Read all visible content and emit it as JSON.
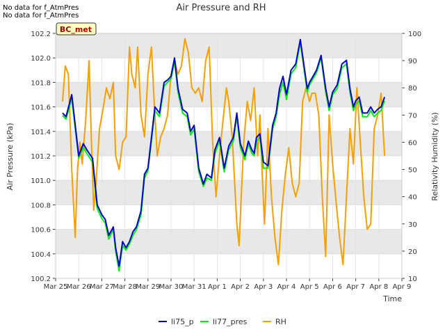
{
  "notes": [
    "No data for f_AtmPres",
    "No data for f_AtmPres"
  ],
  "chart_data": {
    "type": "line",
    "title": "Air Pressure and RH",
    "xlabel": "Time",
    "ylabel": "Air Pressure (kPa)",
    "y2label": "Relativity Humidity (%)",
    "annotation": "BC_met",
    "x_ticks": [
      "Mar 25",
      "Mar 26",
      "Mar 27",
      "Mar 28",
      "Mar 29",
      "Mar 30",
      "Mar 31",
      "Apr 1",
      "Apr 2",
      "Apr 3",
      "Apr 4",
      "Apr 5",
      "Apr 6",
      "Apr 7",
      "Apr 8",
      "Apr 9"
    ],
    "xlim_days": [
      0,
      15
    ],
    "ylim": [
      100.2,
      102.2
    ],
    "y_ticks": [
      "100.2",
      "100.4",
      "100.6",
      "100.8",
      "101.0",
      "101.2",
      "101.4",
      "101.6",
      "101.8",
      "102.0",
      "102.2"
    ],
    "y2lim": [
      10,
      100
    ],
    "y2_ticks": [
      "10",
      "20",
      "30",
      "40",
      "50",
      "60",
      "70",
      "80",
      "90",
      "100"
    ],
    "grid": true,
    "legend_placement": "bottom-center",
    "colors": {
      "li75_p": "#0000cc",
      "li77_pres": "#00ee00",
      "RH": "#f5a000",
      "band": "#e8e8e8",
      "label_bg": "#ffffc0",
      "label_text": "#aa0000"
    },
    "series": [
      {
        "name": "li75_p",
        "axis": "left",
        "x": [
          0.3,
          0.45,
          0.7,
          1.0,
          1.2,
          1.35,
          1.6,
          1.8,
          2.0,
          2.15,
          2.3,
          2.5,
          2.6,
          2.75,
          2.9,
          3.05,
          3.2,
          3.35,
          3.5,
          3.7,
          3.85,
          4.0,
          4.15,
          4.3,
          4.5,
          4.7,
          4.85,
          5.0,
          5.15,
          5.3,
          5.5,
          5.7,
          5.85,
          6.0,
          6.2,
          6.4,
          6.55,
          6.75,
          6.9,
          7.1,
          7.3,
          7.5,
          7.7,
          7.85,
          8.0,
          8.2,
          8.35,
          8.5,
          8.6,
          8.7,
          8.85,
          9.0,
          9.2,
          9.4,
          9.55,
          9.7,
          9.85,
          10.0,
          10.2,
          10.4,
          10.6,
          10.75,
          10.9,
          11.0,
          11.15,
          11.3,
          11.5,
          11.7,
          11.85,
          12.0,
          12.2,
          12.4,
          12.6,
          12.75,
          12.9,
          13.0,
          13.15,
          13.3,
          13.5,
          13.65,
          13.8,
          13.95,
          14.1,
          14.25
        ],
        "values": [
          101.55,
          101.52,
          101.7,
          101.2,
          101.3,
          101.25,
          101.18,
          100.8,
          100.72,
          100.68,
          100.55,
          100.62,
          100.45,
          100.3,
          100.5,
          100.45,
          100.5,
          100.58,
          100.62,
          100.75,
          101.05,
          101.1,
          101.35,
          101.6,
          101.55,
          101.8,
          101.82,
          101.85,
          102.0,
          101.75,
          101.58,
          101.55,
          101.4,
          101.45,
          101.1,
          100.97,
          101.05,
          101.02,
          101.25,
          101.35,
          101.1,
          101.28,
          101.35,
          101.55,
          101.3,
          101.2,
          101.32,
          101.25,
          101.22,
          101.35,
          101.38,
          101.15,
          101.12,
          101.45,
          101.55,
          101.75,
          101.85,
          101.7,
          101.9,
          101.95,
          102.15,
          101.95,
          101.75,
          101.8,
          101.85,
          101.9,
          102.02,
          101.75,
          101.6,
          101.72,
          101.78,
          101.95,
          101.98,
          101.75,
          101.6,
          101.65,
          101.68,
          101.55,
          101.55,
          101.6,
          101.55,
          101.58,
          101.6,
          101.68
        ]
      },
      {
        "name": "li77_pres",
        "axis": "left",
        "x": [
          0.3,
          0.45,
          0.7,
          1.0,
          1.2,
          1.35,
          1.6,
          1.8,
          2.0,
          2.15,
          2.3,
          2.5,
          2.6,
          2.75,
          2.9,
          3.05,
          3.2,
          3.35,
          3.5,
          3.7,
          3.85,
          4.0,
          4.15,
          4.3,
          4.5,
          4.7,
          4.85,
          5.0,
          5.15,
          5.3,
          5.5,
          5.7,
          5.85,
          6.0,
          6.2,
          6.4,
          6.55,
          6.75,
          6.9,
          7.1,
          7.3,
          7.5,
          7.7,
          7.85,
          8.0,
          8.2,
          8.35,
          8.5,
          8.6,
          8.7,
          8.85,
          9.0,
          9.2,
          9.4,
          9.55,
          9.7,
          9.85,
          10.0,
          10.2,
          10.4,
          10.6,
          10.75,
          10.9,
          11.0,
          11.15,
          11.3,
          11.5,
          11.7,
          11.85,
          12.0,
          12.2,
          12.4,
          12.6,
          12.75,
          12.9,
          13.0,
          13.15,
          13.3,
          13.5,
          13.65,
          13.8,
          13.95,
          14.1,
          14.25
        ],
        "values": [
          101.53,
          101.5,
          101.67,
          101.18,
          101.27,
          101.22,
          101.15,
          100.77,
          100.69,
          100.65,
          100.52,
          100.6,
          100.42,
          100.26,
          100.47,
          100.43,
          100.48,
          100.55,
          100.6,
          100.72,
          101.02,
          101.08,
          101.32,
          101.57,
          101.52,
          101.77,
          101.8,
          101.83,
          101.97,
          101.72,
          101.55,
          101.52,
          101.37,
          101.42,
          101.07,
          100.95,
          101.02,
          101.0,
          101.22,
          101.32,
          101.07,
          101.25,
          101.32,
          101.52,
          101.27,
          101.17,
          101.3,
          101.22,
          101.2,
          101.32,
          101.35,
          101.1,
          101.1,
          101.42,
          101.52,
          101.7,
          101.8,
          101.66,
          101.87,
          101.92,
          102.13,
          101.92,
          101.72,
          101.78,
          101.83,
          101.88,
          102.0,
          101.72,
          101.57,
          101.7,
          101.75,
          101.92,
          101.95,
          101.72,
          101.57,
          101.62,
          101.65,
          101.52,
          101.52,
          101.57,
          101.52,
          101.55,
          101.57,
          101.65
        ]
      },
      {
        "name": "RH",
        "axis": "right",
        "x": [
          0.3,
          0.42,
          0.55,
          0.7,
          0.85,
          0.95,
          1.05,
          1.15,
          1.3,
          1.45,
          1.55,
          1.65,
          1.75,
          1.9,
          2.05,
          2.2,
          2.35,
          2.5,
          2.6,
          2.75,
          2.9,
          3.05,
          3.2,
          3.3,
          3.45,
          3.55,
          3.7,
          3.85,
          4.0,
          4.15,
          4.25,
          4.4,
          4.55,
          4.7,
          4.85,
          5.0,
          5.15,
          5.3,
          5.45,
          5.6,
          5.75,
          5.9,
          6.05,
          6.2,
          6.35,
          6.5,
          6.65,
          6.8,
          6.95,
          7.1,
          7.25,
          7.4,
          7.5,
          7.65,
          7.85,
          7.95,
          8.05,
          8.15,
          8.3,
          8.45,
          8.6,
          8.75,
          8.85,
          8.95,
          9.05,
          9.2,
          9.35,
          9.5,
          9.65,
          9.8,
          9.95,
          10.1,
          10.25,
          10.4,
          10.55,
          10.7,
          10.85,
          11.0,
          11.1,
          11.25,
          11.4,
          11.55,
          11.7,
          11.85,
          12.0,
          12.15,
          12.3,
          12.45,
          12.6,
          12.75,
          12.9,
          13.05,
          13.2,
          13.35,
          13.5,
          13.65,
          13.8,
          13.95,
          14.1,
          14.25
        ],
        "values": [
          75,
          88,
          85,
          50,
          25,
          50,
          60,
          52,
          68,
          90,
          60,
          35,
          45,
          65,
          72,
          80,
          76,
          82,
          55,
          50,
          60,
          62,
          95,
          85,
          80,
          95,
          70,
          62,
          85,
          95,
          78,
          55,
          62,
          65,
          70,
          85,
          90,
          85,
          88,
          98,
          93,
          80,
          78,
          80,
          75,
          90,
          95,
          60,
          40,
          55,
          68,
          80,
          75,
          62,
          30,
          22,
          42,
          60,
          75,
          68,
          80,
          55,
          70,
          48,
          30,
          65,
          40,
          25,
          15,
          35,
          48,
          58,
          45,
          40,
          45,
          75,
          80,
          75,
          78,
          78,
          70,
          40,
          18,
          70,
          52,
          38,
          25,
          15,
          40,
          65,
          52,
          80,
          60,
          40,
          28,
          30,
          65,
          70,
          78,
          55
        ]
      }
    ]
  },
  "legend": [
    {
      "label": "li75_p",
      "color": "#0000cc"
    },
    {
      "label": "li77_pres",
      "color": "#00ee00"
    },
    {
      "label": "RH",
      "color": "#f5a000"
    }
  ]
}
